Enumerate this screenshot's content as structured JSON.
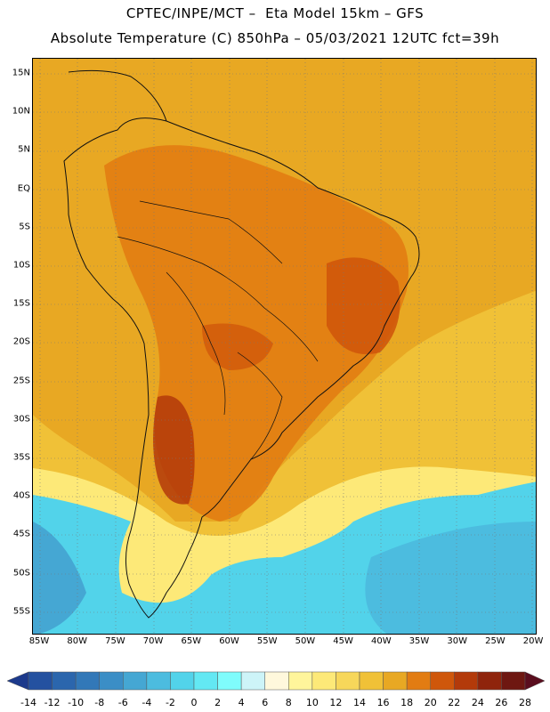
{
  "header": {
    "line1": "CPTEC/INPE/MCT –  Eta Model 15km – GFS",
    "line2": "Absolute Temperature (C) 850hPa – 05/03/2021 12UTC fct=39h"
  },
  "map": {
    "lat_labels": [
      "15N",
      "10N",
      "5N",
      "EQ",
      "5S",
      "10S",
      "15S",
      "20S",
      "25S",
      "30S",
      "35S",
      "40S",
      "45S",
      "50S",
      "55S"
    ],
    "lon_labels": [
      "85W",
      "80W",
      "75W",
      "70W",
      "65W",
      "60W",
      "55W",
      "50W",
      "45W",
      "40W",
      "35W",
      "30W",
      "25W",
      "20W"
    ],
    "background_color": "#e8a823"
  },
  "colorbar": {
    "labels": [
      "-14",
      "-12",
      "-10",
      "-8",
      "-6",
      "-4",
      "-2",
      "0",
      "2",
      "4",
      "6",
      "8",
      "10",
      "12",
      "14",
      "16",
      "18",
      "20",
      "22",
      "24",
      "26",
      "28"
    ],
    "colors": [
      "#1c3a8c",
      "#2451a0",
      "#2b66ad",
      "#3278b8",
      "#3b8ec6",
      "#45a7d3",
      "#4cbcdf",
      "#52d3ea",
      "#63e8f3",
      "#7ffcfc",
      "#cdf4f8",
      "#fff8dc",
      "#fff59b",
      "#fde978",
      "#f7d75a",
      "#f0c137",
      "#e8a823",
      "#e27c12",
      "#cf570b",
      "#b33a0a",
      "#8f240c",
      "#6e1711",
      "#5a0d1e"
    ]
  }
}
